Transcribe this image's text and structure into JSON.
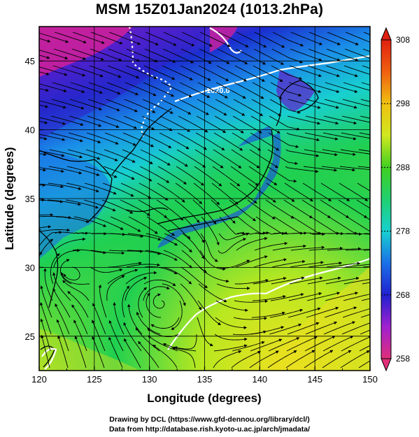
{
  "title": "MSM 15Z01Jan2024 (1013.2hPa)",
  "axes": {
    "xlabel": "Longitude (degrees)",
    "ylabel": "Latitude  (degrees)",
    "x_range": [
      120,
      150
    ],
    "y_range": [
      22.5,
      47.5
    ],
    "x_ticks": [
      "120",
      "125",
      "130",
      "135",
      "140",
      "145",
      "150"
    ],
    "y_ticks": [
      "25",
      "30",
      "35",
      "40",
      "45"
    ]
  },
  "colorbar": {
    "range": [
      258,
      308
    ],
    "labels": [
      "308",
      "298",
      "288",
      "278",
      "268",
      "258"
    ],
    "colors": [
      "#e0307a",
      "#7a1fd0",
      "#1a2fd0",
      "#1a8ee8",
      "#18d0d0",
      "#20d050",
      "#b8e820",
      "#f0e020",
      "#f08010",
      "#e02010"
    ]
  },
  "contour_label": "1020.0",
  "credits": {
    "line1": "Drawing by DCL (https://www.gfd-dennou.org/library/dcl/)",
    "line2": "Data from http://database.rish.kyoto-u.ac.jp/arch/jmadata/"
  }
}
